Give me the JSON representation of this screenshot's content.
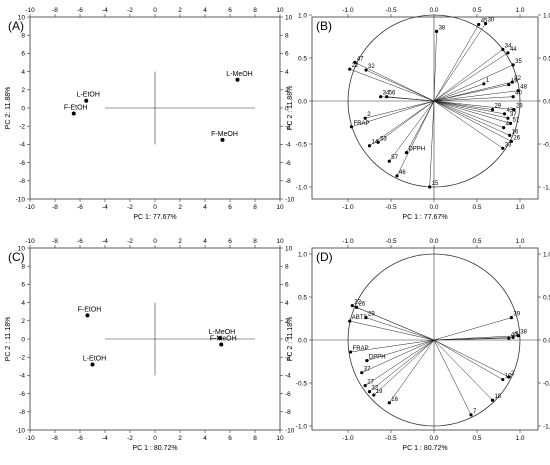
{
  "chart_data": [
    {
      "panel": "(A)",
      "type": "scatter",
      "xlabel": "PC 1: 77.67%",
      "ylabel": "PC 2: 11.88%",
      "xlim": [
        -10,
        10
      ],
      "ylim": [
        -10,
        10
      ],
      "xticks": [
        -10,
        -8,
        -6,
        -4,
        -2,
        0,
        2,
        4,
        6,
        8,
        10
      ],
      "yticks": [
        -10,
        -8,
        -6,
        -4,
        -2,
        0,
        2,
        4,
        6,
        8,
        10
      ],
      "crosshair": [
        -4,
        8,
        -4,
        4
      ],
      "points": [
        {
          "label": "L-EtOH",
          "x": -5.5,
          "y": 0.8
        },
        {
          "label": "F-EtOH",
          "x": -6.5,
          "y": -0.6
        },
        {
          "label": "L-MeOH",
          "x": 6.6,
          "y": 3.1
        },
        {
          "label": "F-MeOH",
          "x": 5.4,
          "y": -3.5
        }
      ]
    },
    {
      "panel": "(B)",
      "type": "scatter",
      "subtype": "loadings circle",
      "xlabel": "PC 1 : 77.67%",
      "ylabel": "PC 2 : 11.88%",
      "xlim": [
        -1.0,
        1.0
      ],
      "ylim": [
        -1.0,
        1.0
      ],
      "xticks": [
        "-1.0",
        "-0.5",
        "0.0",
        "0.5",
        "1.0"
      ],
      "yticks": [
        "-1.0",
        "-0.5",
        "0.0",
        "0.5",
        "1.0"
      ],
      "points": [
        {
          "label": "38",
          "x": 0.03,
          "y": 0.81
        },
        {
          "label": "45",
          "x": 0.52,
          "y": 0.89
        },
        {
          "label": "30",
          "x": 0.6,
          "y": 0.9
        },
        {
          "label": "34",
          "x": 0.8,
          "y": 0.6
        },
        {
          "label": "44",
          "x": 0.86,
          "y": 0.56
        },
        {
          "label": "35",
          "x": 0.92,
          "y": 0.42
        },
        {
          "label": "1",
          "x": 0.58,
          "y": 0.2
        },
        {
          "label": "52",
          "x": 0.91,
          "y": 0.22
        },
        {
          "label": "19",
          "x": 0.87,
          "y": 0.19
        },
        {
          "label": "48",
          "x": 0.98,
          "y": 0.12
        },
        {
          "label": "29",
          "x": 0.68,
          "y": -0.1
        },
        {
          "label": "40",
          "x": 0.92,
          "y": 0.05
        },
        {
          "label": "43",
          "x": 0.82,
          "y": -0.15
        },
        {
          "label": "37",
          "x": 0.86,
          "y": -0.2
        },
        {
          "label": "28",
          "x": 0.93,
          "y": -0.1
        },
        {
          "label": "51",
          "x": 0.89,
          "y": -0.26
        },
        {
          "label": "4",
          "x": 0.81,
          "y": -0.31
        },
        {
          "label": "16",
          "x": 0.88,
          "y": -0.4
        },
        {
          "label": "26",
          "x": 0.9,
          "y": -0.47
        },
        {
          "label": "33",
          "x": 0.8,
          "y": -0.55
        },
        {
          "label": "47",
          "x": -0.92,
          "y": 0.45
        },
        {
          "label": "32",
          "x": -0.79,
          "y": 0.36
        },
        {
          "label": "22",
          "x": -0.98,
          "y": 0.37
        },
        {
          "label": "34",
          "x": -0.62,
          "y": 0.05
        },
        {
          "label": "56",
          "x": -0.55,
          "y": 0.05
        },
        {
          "label": "2",
          "x": -0.8,
          "y": -0.2
        },
        {
          "label": "FRAP",
          "x": -0.96,
          "y": -0.3
        },
        {
          "label": "14",
          "x": -0.75,
          "y": -0.52
        },
        {
          "label": "53",
          "x": -0.65,
          "y": -0.48
        },
        {
          "label": "DPPH",
          "x": -0.32,
          "y": -0.6
        },
        {
          "label": "57",
          "x": -0.52,
          "y": -0.7
        },
        {
          "label": "46",
          "x": -0.43,
          "y": -0.87
        },
        {
          "label": "15",
          "x": -0.05,
          "y": -1.0
        }
      ]
    },
    {
      "panel": "(C)",
      "type": "scatter",
      "xlabel": "PC 1 : 80.72%",
      "ylabel": "PC 2 : 11.18%",
      "xlim": [
        -10,
        10
      ],
      "ylim": [
        -10,
        10
      ],
      "xticks": [
        -10,
        -8,
        -6,
        -4,
        -2,
        0,
        2,
        4,
        6,
        8,
        10
      ],
      "yticks": [
        -10,
        -8,
        -6,
        -4,
        -2,
        0,
        2,
        4,
        6,
        8,
        10
      ],
      "crosshair": [
        -4,
        8,
        -4,
        4
      ],
      "points": [
        {
          "label": "F-EtOH",
          "x": -5.4,
          "y": 2.6
        },
        {
          "label": "L-EtOH",
          "x": -5.0,
          "y": -2.8
        },
        {
          "label": "L-MeOH",
          "x": 5.2,
          "y": 0.1
        },
        {
          "label": "F-MeOH",
          "x": 5.3,
          "y": -0.6
        }
      ]
    },
    {
      "panel": "(D)",
      "type": "scatter",
      "subtype": "loadings circle",
      "xlabel": "PC 1 : 80.72%",
      "ylabel": "PC 2 : 11.18%",
      "xlim": [
        -1.0,
        1.0
      ],
      "ylim": [
        -1.0,
        1.0
      ],
      "xticks": [
        "-1.0",
        "-0.5",
        "0.0",
        "0.5",
        "1.0"
      ],
      "yticks": [
        "-1.0",
        "-0.5",
        "0.0",
        "0.5",
        "1.0"
      ],
      "points": [
        {
          "label": "22",
          "x": -0.95,
          "y": 0.4
        },
        {
          "label": "26",
          "x": -0.9,
          "y": 0.38
        },
        {
          "label": "29",
          "x": -0.79,
          "y": 0.26
        },
        {
          "label": "ABTS",
          "x": -0.98,
          "y": 0.22
        },
        {
          "label": "FRAP",
          "x": -0.97,
          "y": -0.14
        },
        {
          "label": "DPPH",
          "x": -0.78,
          "y": -0.24
        },
        {
          "label": "37",
          "x": -0.84,
          "y": -0.38
        },
        {
          "label": "27",
          "x": -0.8,
          "y": -0.53
        },
        {
          "label": "32",
          "x": -0.75,
          "y": -0.6
        },
        {
          "label": "19",
          "x": -0.7,
          "y": -0.64
        },
        {
          "label": "16",
          "x": -0.52,
          "y": -0.73
        },
        {
          "label": "39",
          "x": 0.9,
          "y": 0.26
        },
        {
          "label": "40",
          "x": 0.87,
          "y": 0.02
        },
        {
          "label": "9",
          "x": 0.92,
          "y": 0.03
        },
        {
          "label": "38",
          "x": 0.98,
          "y": 0.05
        },
        {
          "label": "10",
          "x": 0.8,
          "y": -0.46
        },
        {
          "label": "2",
          "x": 0.87,
          "y": -0.43
        },
        {
          "label": "18",
          "x": 0.68,
          "y": -0.7
        },
        {
          "label": "7",
          "x": 0.43,
          "y": -0.87
        }
      ]
    }
  ]
}
